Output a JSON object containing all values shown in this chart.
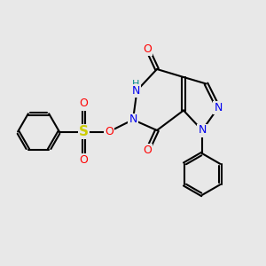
{
  "bg_color": "#e8e8e8",
  "atom_colors": {
    "C": "#000000",
    "N": "#0000ee",
    "O": "#ff0000",
    "S": "#cccc00",
    "H": "#008888"
  },
  "bond_color": "#000000",
  "bond_width": 1.5,
  "fig_width": 3.0,
  "fig_height": 3.0,
  "dpi": 100
}
